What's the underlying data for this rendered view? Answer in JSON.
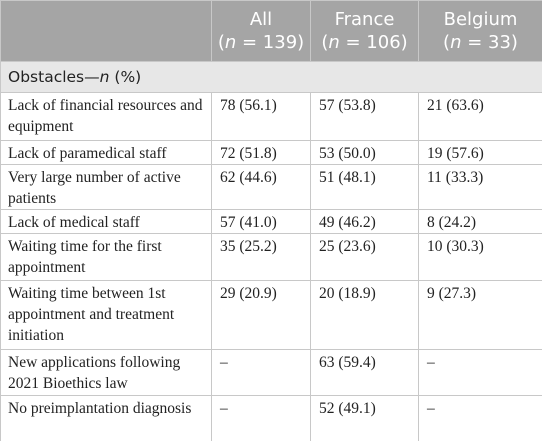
{
  "table": {
    "header": [
      {
        "name": "All",
        "n": [
          "(",
          "n",
          " = 139)"
        ]
      },
      {
        "name": "France",
        "n": [
          "(",
          "n",
          " = 106)"
        ]
      },
      {
        "name": "Belgium",
        "n": [
          "(",
          "n",
          " = 33)"
        ]
      }
    ],
    "section": [
      "Obstacles—",
      "n",
      " (%)"
    ],
    "rows": [
      [
        "Lack of financial resources and equipment",
        "78 (56.1)",
        "57 (53.8)",
        "21 (63.6)"
      ],
      [
        "Lack of paramedical staff",
        "72 (51.8)",
        "53 (50.0)",
        "19 (57.6)"
      ],
      [
        "Very large number of active patients",
        "62 (44.6)",
        "51 (48.1)",
        "11 (33.3)"
      ],
      [
        "Lack of medical staff",
        "57 (41.0)",
        "49 (46.2)",
        "8 (24.2)"
      ],
      [
        "Waiting time for the first appointment",
        "35 (25.2)",
        "25 (23.6)",
        "10 (30.3)"
      ],
      [
        "Waiting time between 1st appointment and treatment initiation",
        "29 (20.9)",
        "20 (18.9)",
        "9 (27.3)"
      ],
      [
        "New applications following 2021 Bioethics law",
        "–",
        "63 (59.4)",
        "–"
      ],
      [
        "No preimplantation diagnosis",
        "–",
        "52 (49.1)",
        "–"
      ]
    ]
  }
}
